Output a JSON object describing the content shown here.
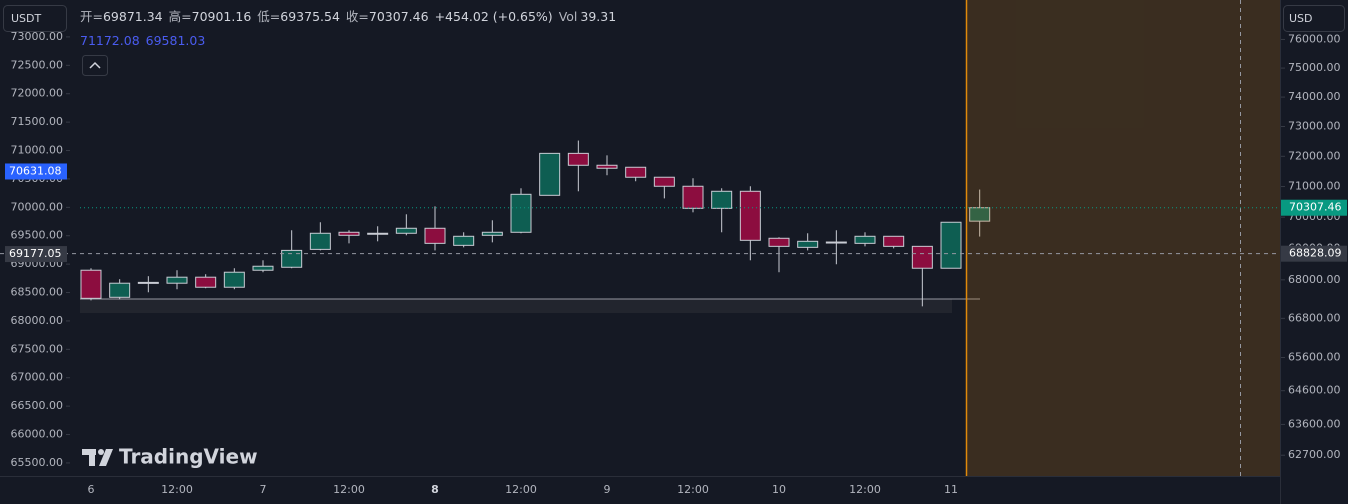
{
  "header": {
    "currency_left": "USDT",
    "currency_right": "USD",
    "ohlc_labels": [
      "开=",
      "高=",
      "低=",
      "收="
    ],
    "change": "+454.02 (+0.65%)",
    "volume_label": "Vol",
    "volume": 39.31,
    "indicator_values": [
      71172.08,
      69581.03
    ],
    "logo": "TradingView"
  },
  "chart_data": {
    "type": "candlestick",
    "categories": [
      "6",
      null,
      null,
      "12:00",
      null,
      null,
      "7",
      null,
      null,
      "12:00",
      null,
      null,
      "8",
      null,
      null,
      "12:00",
      null,
      null,
      "9",
      null,
      null,
      "12:00",
      null,
      null,
      "10",
      null,
      null,
      "12:00",
      null,
      null,
      "11",
      null
    ],
    "open": [
      68303,
      67453,
      67894,
      67894,
      68083,
      67768,
      68303,
      68397,
      68965,
      69513,
      69481,
      69481,
      69642,
      69094,
      69416,
      69513,
      70712,
      72098,
      71702,
      71636,
      71306,
      71009,
      70288,
      70844,
      69320,
      69030,
      69190,
      69158,
      69384,
      69062,
      68366,
      69871.34
    ],
    "high": [
      68366,
      68020,
      68115,
      68303,
      68177,
      68366,
      68618,
      69578,
      69836,
      69578,
      69707,
      70094,
      70352,
      69513,
      69900,
      70943,
      72098,
      72527,
      72032,
      71636,
      71306,
      71273,
      70943,
      71009,
      69352,
      69481,
      69578,
      69513,
      69384,
      69062,
      69836,
      70901.16
    ],
    "low": [
      67358,
      67390,
      67610,
      67705,
      67736,
      67705,
      68240,
      68366,
      68933,
      69158,
      69223,
      69416,
      68933,
      69030,
      69190,
      69481,
      70712,
      70844,
      71372,
      71174,
      70612,
      70158,
      69513,
      68618,
      68240,
      68933,
      68492,
      69062,
      68998,
      67171,
      68366,
      69375.54
    ],
    "close": [
      67421,
      67894,
      67920,
      68083,
      67768,
      68240,
      68429,
      68933,
      69481,
      69416,
      69470,
      69642,
      69158,
      69384,
      69513,
      70745,
      72098,
      71702,
      71603,
      71306,
      71009,
      70288,
      70844,
      69255,
      69062,
      69223,
      69200,
      69384,
      69062,
      68366,
      69836,
      70307.46
    ],
    "up_color": "#0e5e52",
    "down_color": "#8c0d3f",
    "ylim": [
      62100,
      77400
    ],
    "log_scale": true,
    "yticks": [
      {
        "value": 76000,
        "label": "76000.00"
      },
      {
        "value": 75000,
        "label": "75000.00"
      },
      {
        "value": 74000,
        "label": "74000.00"
      },
      {
        "value": 73000,
        "label": "73000.00"
      },
      {
        "value": 72000,
        "label": "72000.00"
      },
      {
        "value": 71000,
        "label": "71000.00"
      },
      {
        "value": 70000,
        "label": "70000.00"
      },
      {
        "value": 69000,
        "label": "69000.00"
      },
      {
        "value": 68000,
        "label": "68000.00"
      },
      {
        "value": 66800,
        "label": "66800.00"
      },
      {
        "value": 65600,
        "label": "65600.00"
      },
      {
        "value": 64600,
        "label": "64600.00"
      },
      {
        "value": 63600,
        "label": "63600.00"
      },
      {
        "value": 62700,
        "label": "62700.00"
      }
    ],
    "y2lim": [
      65270,
      73650
    ],
    "y2ticks": [
      {
        "value": 73000,
        "label": "73000.00"
      },
      {
        "value": 72500,
        "label": "72500.00"
      },
      {
        "value": 72000,
        "label": "72000.00"
      },
      {
        "value": 71500,
        "label": "71500.00"
      },
      {
        "value": 71000,
        "label": "71000.00"
      },
      {
        "value": 70500,
        "label": "70500.00"
      },
      {
        "value": 70000,
        "label": "70000.00"
      },
      {
        "value": 69500,
        "label": "69500.00"
      },
      {
        "value": 69000,
        "label": "69000.00"
      },
      {
        "value": 68500,
        "label": "68500.00"
      },
      {
        "value": 68000,
        "label": "68000.00"
      },
      {
        "value": 67500,
        "label": "67500.00"
      },
      {
        "value": 67000,
        "label": "67000.00"
      },
      {
        "value": 66500,
        "label": "66500.00"
      },
      {
        "value": 66000,
        "label": "66000.00"
      },
      {
        "value": 65500,
        "label": "65500.00"
      }
    ],
    "y2_marker": 70631.08,
    "crosshair": {
      "y2_value": 69177.05,
      "y_value": 68828.09
    }
  }
}
